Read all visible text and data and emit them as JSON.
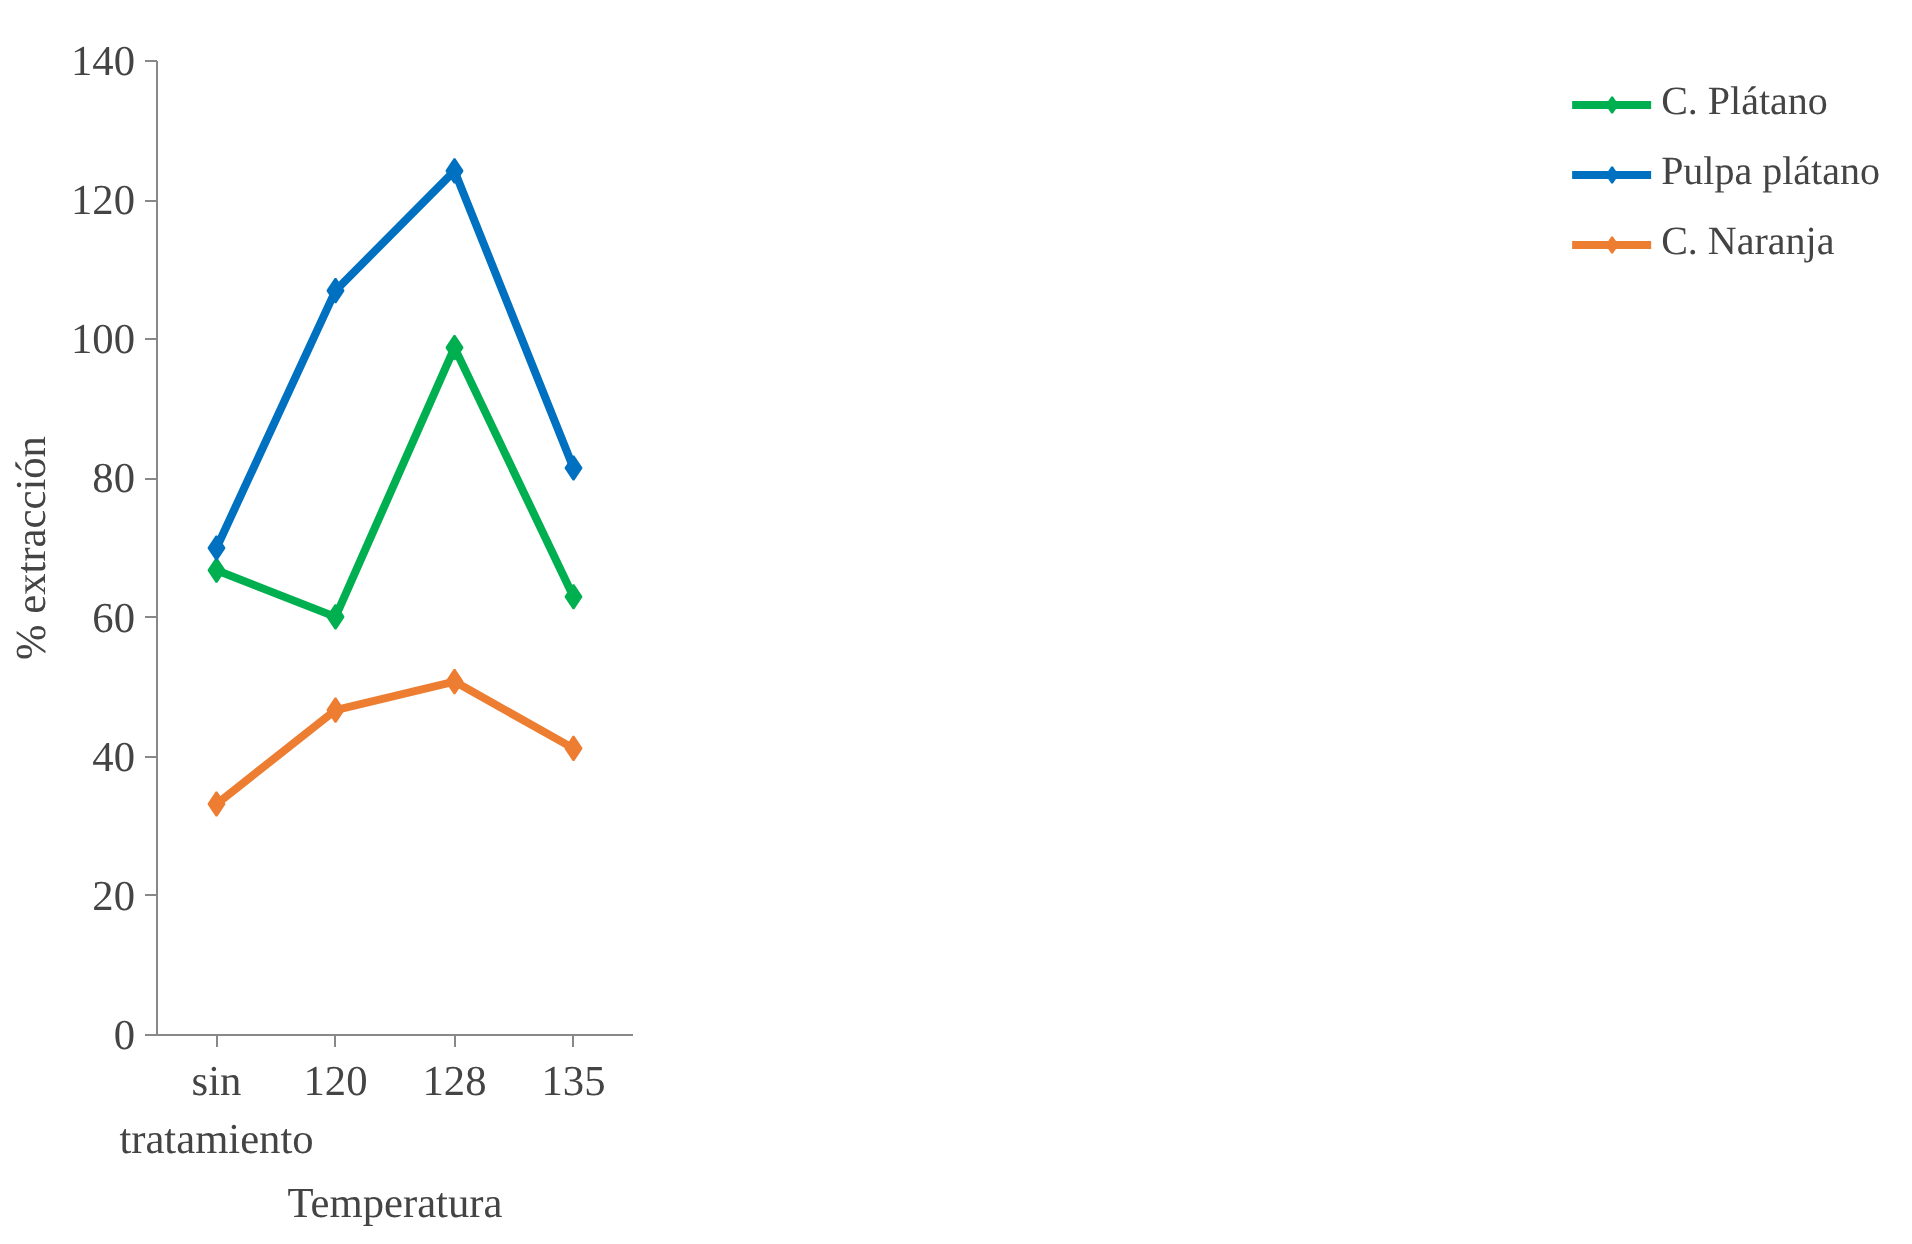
{
  "chart_data": {
    "type": "line",
    "xlabel": "Temperatura",
    "ylabel": "% extracción",
    "categories": [
      "sin tratamiento",
      "120",
      "128",
      "135"
    ],
    "series": [
      {
        "name": "C. Plátano",
        "color": "#00b050",
        "values": [
          66.8,
          60.1,
          98.8,
          63.0
        ]
      },
      {
        "name": "Pulpa plátano",
        "color": "#0070c0",
        "values": [
          70.0,
          107.0,
          124.2,
          81.5
        ]
      },
      {
        "name": "C. Naranja",
        "color": "#ed7d31",
        "values": [
          33.2,
          46.7,
          50.8,
          41.2
        ]
      }
    ],
    "ylim": [
      0,
      140
    ],
    "yticks": [
      0,
      20,
      40,
      60,
      80,
      100,
      120,
      140
    ],
    "grid": false,
    "legend": "right",
    "marker": "diamond",
    "line_style": "solid"
  }
}
